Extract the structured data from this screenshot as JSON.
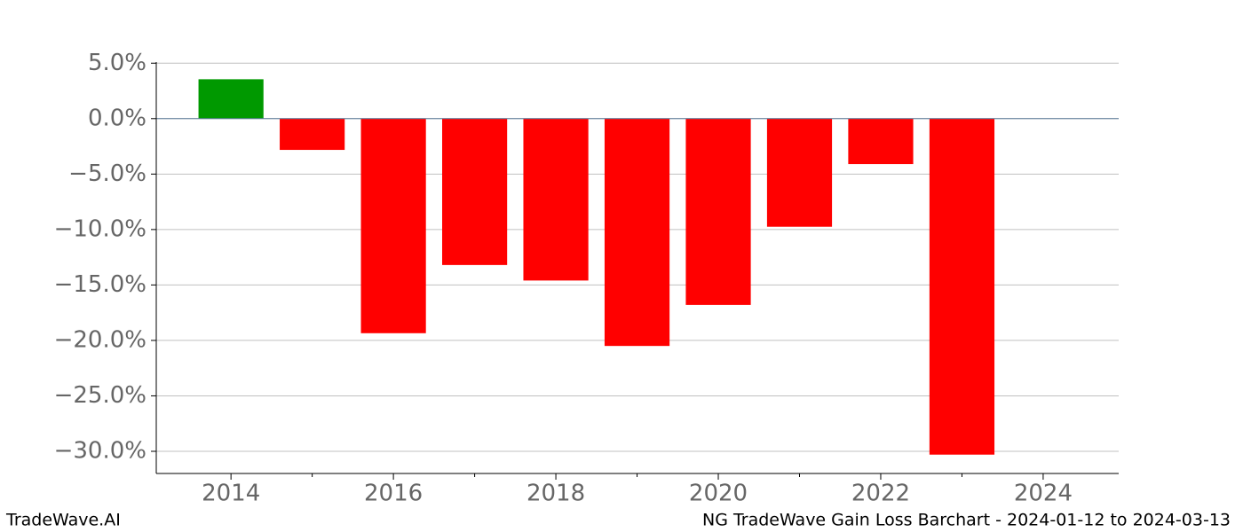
{
  "chart_data": {
    "type": "bar",
    "title": "NG TradeWave Gain Loss Barchart - 2024-01-12 to 2024-03-13",
    "source": "TradeWave.AI",
    "x": [
      2014,
      2015,
      2016,
      2017,
      2018,
      2019,
      2020,
      2021,
      2022,
      2023
    ],
    "values": [
      3.55,
      -2.82,
      -19.35,
      -13.2,
      -14.6,
      -20.5,
      -16.8,
      -9.75,
      -4.1,
      -30.3
    ],
    "colors": [
      "#009900",
      "#ff0000",
      "#ff0000",
      "#ff0000",
      "#ff0000",
      "#ff0000",
      "#ff0000",
      "#ff0000",
      "#ff0000",
      "#ff0000"
    ],
    "xlim": [
      2013.08,
      2024.93
    ],
    "xticks": [
      2014,
      2016,
      2018,
      2020,
      2022,
      2024
    ],
    "xminorticks": [
      2015,
      2017,
      2019,
      2021,
      2023
    ],
    "ylim": [
      -32.0,
      5.1
    ],
    "yticks": [
      {
        "value": 5,
        "label": "5.0%"
      },
      {
        "value": 0,
        "label": "0.0%"
      },
      {
        "value": -5,
        "label": "−5.0%"
      },
      {
        "value": -10,
        "label": "−10.0%"
      },
      {
        "value": -15,
        "label": "−15.0%"
      },
      {
        "value": -20,
        "label": "−20.0%"
      },
      {
        "value": -25,
        "label": "−25.0%"
      },
      {
        "value": -30,
        "label": "−30.0%"
      }
    ],
    "grid": true
  }
}
